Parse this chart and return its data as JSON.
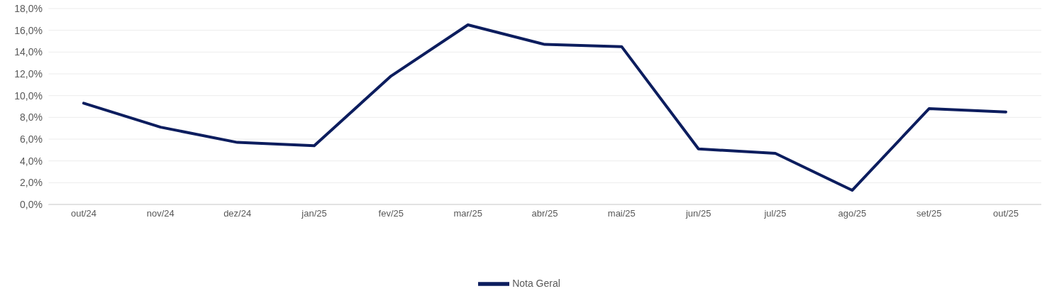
{
  "chart_data": {
    "type": "line",
    "categories": [
      "out/24",
      "nov/24",
      "dez/24",
      "jan/25",
      "fev/25",
      "mar/25",
      "abr/25",
      "mai/25",
      "jun/25",
      "jul/25",
      "ago/25",
      "set/25",
      "out/25"
    ],
    "series": [
      {
        "name": "Nota Geral",
        "color": "#0c1d5e",
        "values": [
          9.3,
          7.1,
          5.7,
          5.4,
          11.8,
          16.5,
          14.7,
          14.5,
          5.1,
          4.7,
          1.3,
          8.8,
          8.5
        ]
      }
    ],
    "ylim": [
      0,
      18
    ],
    "yticks": [
      {
        "value": 0,
        "label": "0,0%"
      },
      {
        "value": 2,
        "label": "2,0%"
      },
      {
        "value": 4,
        "label": "4,0%"
      },
      {
        "value": 6,
        "label": "6,0%"
      },
      {
        "value": 8,
        "label": "8,0%"
      },
      {
        "value": 10,
        "label": "10,0%"
      },
      {
        "value": 12,
        "label": "12,0%"
      },
      {
        "value": 14,
        "label": "14,0%"
      },
      {
        "value": 16,
        "label": "16,0%"
      },
      {
        "value": 18,
        "label": "18,0%"
      }
    ],
    "grid": "y",
    "legend": "bottom",
    "marker": "none",
    "line_style": "solid"
  }
}
